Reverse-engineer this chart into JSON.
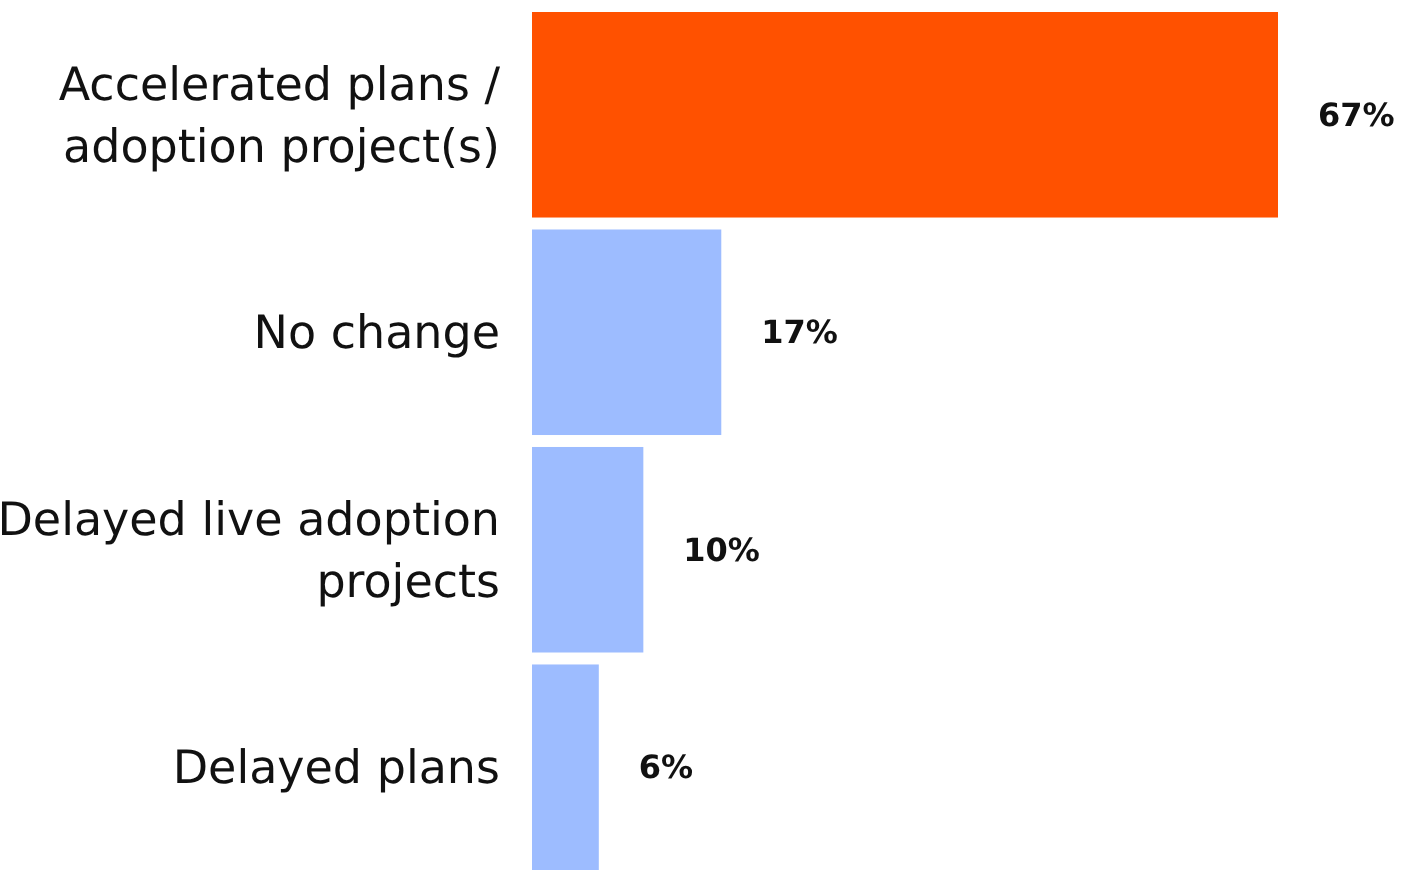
{
  "chart_data": {
    "type": "bar",
    "orientation": "horizontal",
    "categories": [
      "Accelerated plans / adoption project(s)",
      "No change",
      "Delayed live adoption projects",
      "Delayed plans"
    ],
    "values": [
      67,
      17,
      10,
      6
    ],
    "colors": [
      "#ff5100",
      "#9dbcff",
      "#9dbcff",
      "#9dbcff"
    ],
    "value_labels": [
      "67%",
      "17%",
      "10%",
      "6%"
    ]
  }
}
